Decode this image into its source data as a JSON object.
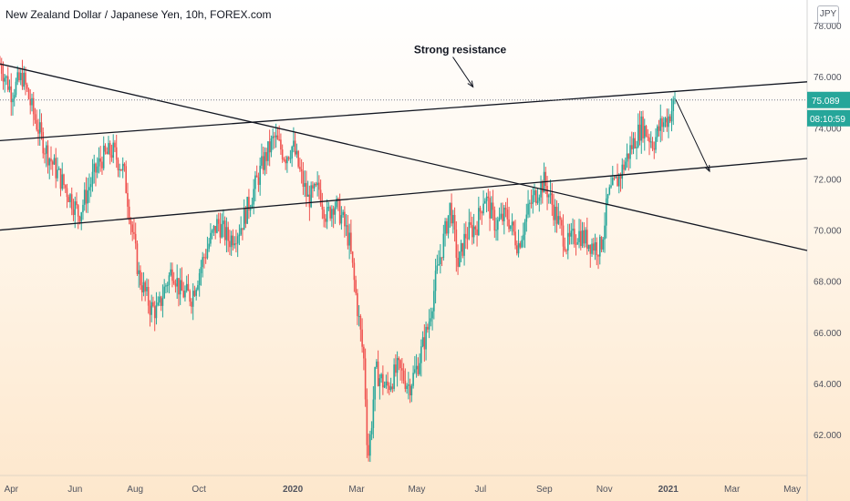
{
  "title": "New Zealand Dollar / Japanese Yen, 10h, FOREX.com",
  "currency_button": "JPY",
  "price_badge": {
    "value": "75.089",
    "countdown": "08:10:59"
  },
  "colors": {
    "up": "#26a69a",
    "down": "#ef5350",
    "badge_bg": "#26a69a",
    "line": "#131722"
  },
  "chart_data": {
    "type": "candlestick",
    "title": "New Zealand Dollar / Japanese Yen, 10h, FOREX.com",
    "ylim": [
      60.4,
      79.0
    ],
    "y_ticks": [
      "78.000",
      "76.000",
      "74.000",
      "72.000",
      "70.000",
      "68.000",
      "66.000",
      "64.000",
      "62.000"
    ],
    "x_ticks": [
      "Apr",
      "Jun",
      "Aug",
      "Oct",
      "2020",
      "Mar",
      "May",
      "Jul",
      "Sep",
      "Nov",
      "2021",
      "Mar",
      "May"
    ],
    "x_tick_years": [
      2019.25,
      2019.42,
      2019.58,
      2019.75,
      2020.0,
      2020.17,
      2020.33,
      2020.5,
      2020.67,
      2020.83,
      2021.0,
      2021.17,
      2021.33
    ],
    "xlim": [
      2019.22,
      2021.37
    ],
    "last_price": 75.089,
    "price_path": [
      [
        2019.22,
        76.5
      ],
      [
        2019.25,
        75.4
      ],
      [
        2019.28,
        76.0
      ],
      [
        2019.31,
        74.5
      ],
      [
        2019.34,
        73.2
      ],
      [
        2019.37,
        72.3
      ],
      [
        2019.4,
        71.5
      ],
      [
        2019.43,
        70.6
      ],
      [
        2019.46,
        71.8
      ],
      [
        2019.49,
        72.8
      ],
      [
        2019.52,
        73.1
      ],
      [
        2019.55,
        72.3
      ],
      [
        2019.57,
        70.2
      ],
      [
        2019.59,
        68.2
      ],
      [
        2019.62,
        67.0
      ],
      [
        2019.64,
        66.8
      ],
      [
        2019.66,
        67.8
      ],
      [
        2019.68,
        68.5
      ],
      [
        2019.7,
        67.6
      ],
      [
        2019.73,
        67.4
      ],
      [
        2019.76,
        68.8
      ],
      [
        2019.78,
        69.6
      ],
      [
        2019.8,
        70.3
      ],
      [
        2019.83,
        69.6
      ],
      [
        2019.86,
        70.1
      ],
      [
        2019.89,
        71.3
      ],
      [
        2019.92,
        72.6
      ],
      [
        2019.95,
        73.6
      ],
      [
        2019.98,
        72.9
      ],
      [
        2020.0,
        73.3
      ],
      [
        2020.02,
        72.2
      ],
      [
        2020.04,
        71.2
      ],
      [
        2020.07,
        71.6
      ],
      [
        2020.09,
        70.5
      ],
      [
        2020.11,
        71.1
      ],
      [
        2020.13,
        70.5
      ],
      [
        2020.15,
        69.6
      ],
      [
        2020.17,
        67.2
      ],
      [
        2020.19,
        64.8
      ],
      [
        2020.2,
        61.0
      ],
      [
        2020.21,
        62.5
      ],
      [
        2020.22,
        64.5
      ],
      [
        2020.25,
        63.8
      ],
      [
        2020.28,
        64.6
      ],
      [
        2020.31,
        63.9
      ],
      [
        2020.33,
        64.6
      ],
      [
        2020.36,
        66.2
      ],
      [
        2020.38,
        68.0
      ],
      [
        2020.4,
        69.5
      ],
      [
        2020.42,
        71.0
      ],
      [
        2020.44,
        68.6
      ],
      [
        2020.46,
        69.8
      ],
      [
        2020.49,
        70.2
      ],
      [
        2020.51,
        71.4
      ],
      [
        2020.54,
        70.2
      ],
      [
        2020.57,
        70.6
      ],
      [
        2020.6,
        69.4
      ],
      [
        2020.63,
        70.9
      ],
      [
        2020.65,
        71.5
      ],
      [
        2020.67,
        71.9
      ],
      [
        2020.7,
        70.6
      ],
      [
        2020.73,
        69.4
      ],
      [
        2020.76,
        69.9
      ],
      [
        2020.79,
        69.5
      ],
      [
        2020.82,
        69.3
      ],
      [
        2020.84,
        71.3
      ],
      [
        2020.87,
        72.1
      ],
      [
        2020.9,
        73.2
      ],
      [
        2020.93,
        74.1
      ],
      [
        2020.96,
        73.4
      ],
      [
        2020.98,
        74.1
      ],
      [
        2021.0,
        74.4
      ],
      [
        2021.02,
        75.1
      ]
    ],
    "lines": [
      {
        "name": "upper-channel-line",
        "from": [
          2019.22,
          73.5
        ],
        "to": [
          2021.37,
          75.8
        ]
      },
      {
        "name": "lower-channel-line",
        "from": [
          2019.22,
          70.0
        ],
        "to": [
          2021.37,
          72.8
        ]
      },
      {
        "name": "descending-trendline",
        "from": [
          2019.22,
          76.5
        ],
        "to": [
          2021.37,
          69.2
        ]
      },
      {
        "name": "resistance-dotted-line",
        "from": [
          2019.22,
          75.089
        ],
        "to": [
          2021.37,
          75.089
        ],
        "style": "dotted"
      }
    ],
    "annotations": [
      {
        "text": "Strong resistance",
        "x": 2020.47,
        "y": 76.7,
        "arrow_to": [
          2020.48,
          75.6
        ]
      },
      {
        "text": "",
        "x": 2021.02,
        "y": 75.1,
        "arrow_to": [
          2021.11,
          72.3
        ]
      }
    ]
  }
}
